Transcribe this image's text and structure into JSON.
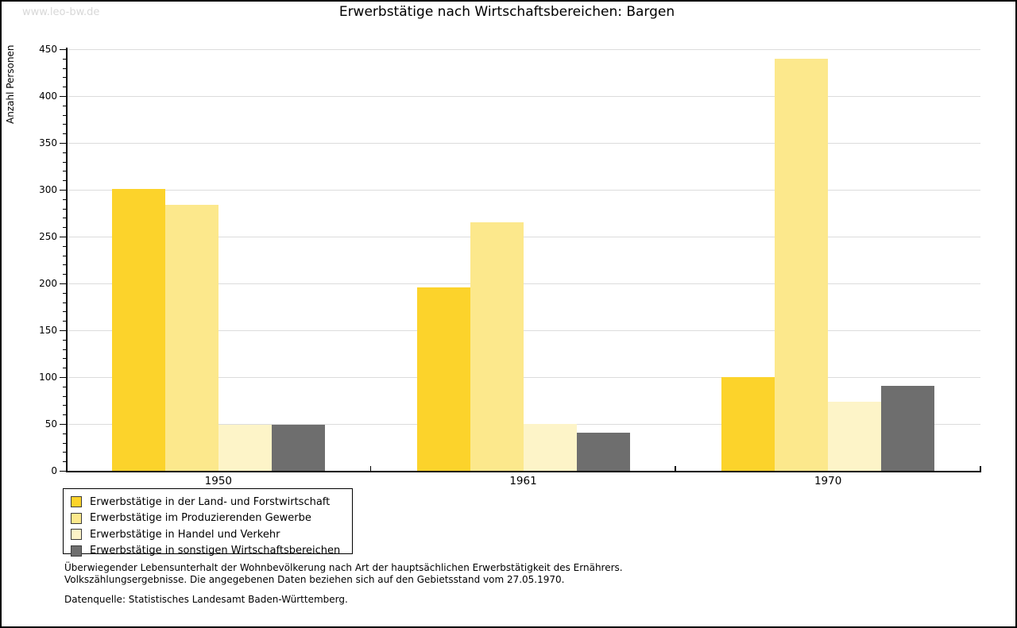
{
  "watermark": "www.leo-bw.de",
  "title": "Erwerbstätige nach Wirtschaftsbereichen: Bargen",
  "chart_data": {
    "type": "bar",
    "title": "Erwerbstätige nach Wirtschaftsbereichen: Bargen",
    "xlabel": "",
    "ylabel": "Anzahl Personen",
    "categories": [
      "1950",
      "1961",
      "1970"
    ],
    "series": [
      {
        "name": "Erwerbstätige in der Land- und Forstwirtschaft",
        "color": "#FCD32B",
        "values": [
          301,
          196,
          100
        ]
      },
      {
        "name": "Erwerbstätige im Produzierenden Gewerbe",
        "color": "#FCE88C",
        "values": [
          284,
          265,
          440
        ]
      },
      {
        "name": "Erwerbstätige in Handel und Verkehr",
        "color": "#FDF4C8",
        "values": [
          49,
          50,
          74
        ]
      },
      {
        "name": "Erwerbstätige in sonstigen Wirtschaftsbereichen",
        "color": "#6E6E6E",
        "values": [
          49,
          41,
          91
        ]
      }
    ],
    "ylim": [
      0,
      450
    ],
    "ytick_step": 50,
    "yminor_step": 10,
    "grid": "horizontal-major",
    "legend_position": "bottom-left"
  },
  "notes": {
    "line1": "Überwiegender Lebensunterhalt der Wohnbevölkerung nach Art der hauptsächlichen Erwerbstätigkeit des Ernährers.",
    "line2": "Volkszählungsergebnisse. Die angegebenen Daten beziehen sich auf den Gebietsstand vom 27.05.1970.",
    "source": "Datenquelle: Statistisches Landesamt Baden-Württemberg."
  }
}
